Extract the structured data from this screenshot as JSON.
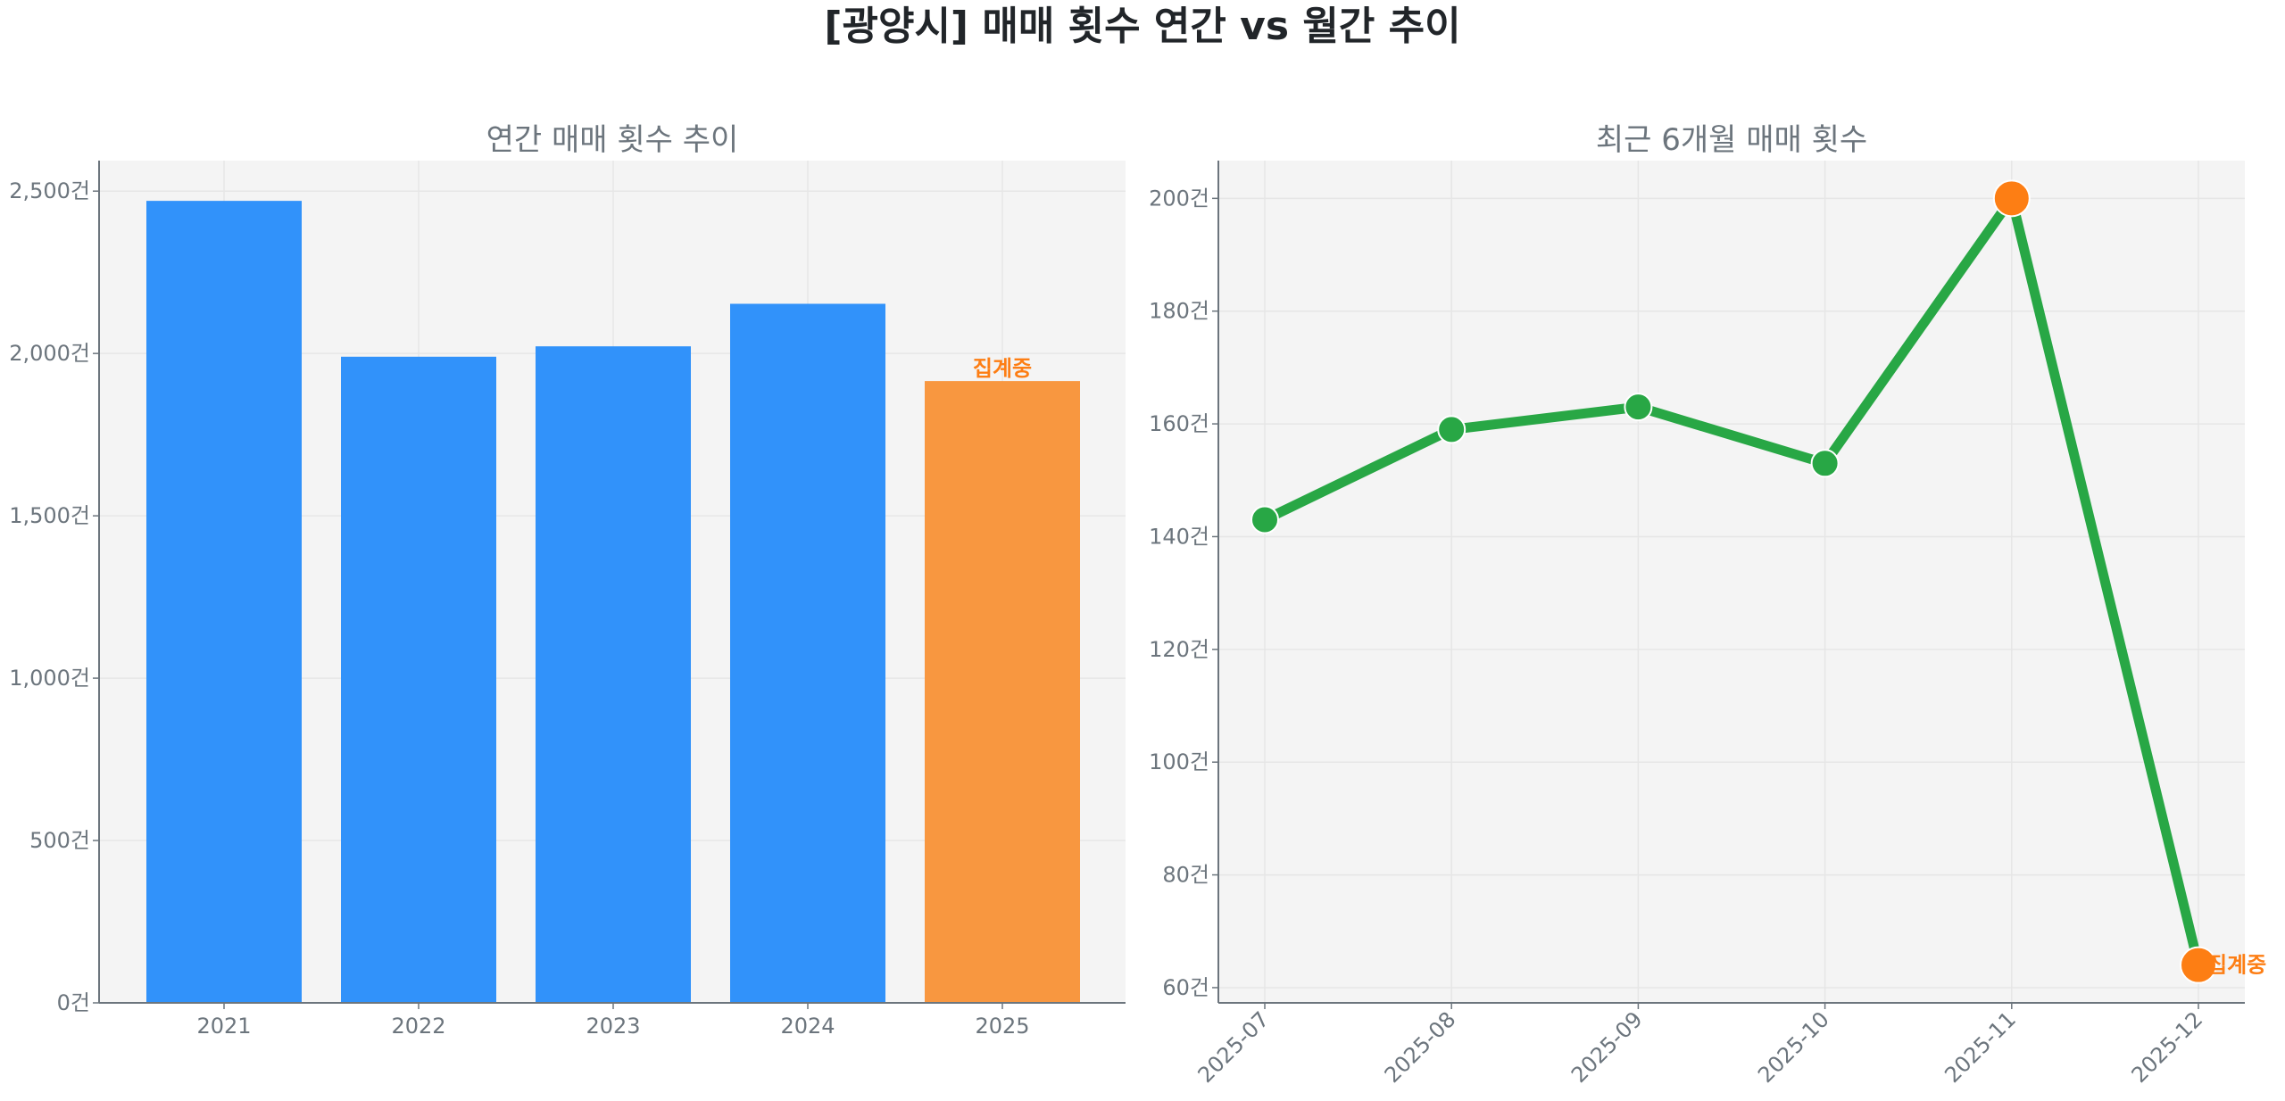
{
  "title": "[광양시] 매매 횟수 연간 vs 월간 추이",
  "colors": {
    "bar": "#3192fa",
    "bar_partial": "#f89740",
    "line": "#28a745",
    "highlight": "#fd7e14",
    "text": "#6c757d",
    "plot_bg": "#f4f4f4",
    "grid": "#e6e6e6"
  },
  "chart_data": [
    {
      "type": "bar",
      "title": "연간 매매 횟수 추이",
      "categories": [
        "2021",
        "2022",
        "2023",
        "2024",
        "2025"
      ],
      "values": [
        2470,
        1990,
        2022,
        2153,
        1915
      ],
      "partial_index": 4,
      "annotation": "집계중",
      "ylim": [
        0,
        2594
      ],
      "yticks": [
        0,
        500,
        1000,
        1500,
        2000,
        2500
      ],
      "ytick_labels": [
        "0건",
        "500건",
        "1,000건",
        "1,500건",
        "2,000건",
        "2,500건"
      ],
      "grid": true
    },
    {
      "type": "line",
      "title": "최근 6개월 매매 횟수",
      "categories": [
        "2025-07",
        "2025-08",
        "2025-09",
        "2025-10",
        "2025-11",
        "2025-12"
      ],
      "values": [
        143,
        159,
        163,
        153,
        200,
        64
      ],
      "highlight_indices": [
        4,
        5
      ],
      "annotation": "집계중",
      "ylim": [
        57.3,
        206.7
      ],
      "yticks": [
        60,
        80,
        100,
        120,
        140,
        160,
        180,
        200
      ],
      "ytick_labels": [
        "60건",
        "80건",
        "100건",
        "120건",
        "140건",
        "160건",
        "180건",
        "200건"
      ],
      "grid": true
    }
  ]
}
